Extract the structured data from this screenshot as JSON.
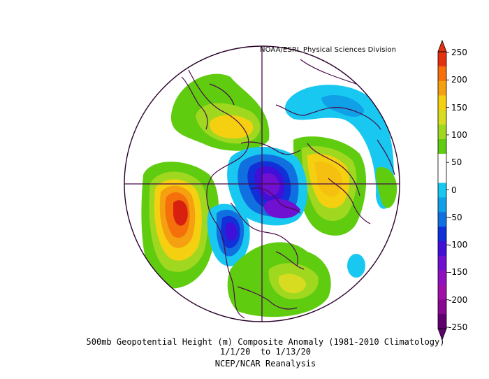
{
  "credit": "NOAA/ESRL Physical Sciences Division",
  "caption": {
    "line1": "500mb Geopotential Height (m) Composite Anomaly (1981-2010 Climatology)",
    "line2": "1/1/20  to 1/13/20",
    "line3": "NCEP/NCAR Reanalysis"
  },
  "colorbar": {
    "labels": [
      "250",
      "200",
      "150",
      "100",
      "50",
      "0",
      "-50",
      "-100",
      "-150",
      "-200",
      "-250"
    ],
    "colors": [
      "#e53010",
      "#f5700a",
      "#f5a010",
      "#f5d010",
      "#d8dc20",
      "#a0d820",
      "#60cc10",
      "#ffffff",
      "#ffffff",
      "#18c8f0",
      "#10a0e8",
      "#1070e0",
      "#1030d8",
      "#4010d8",
      "#7010d0",
      "#9010c0",
      "#a010a8",
      "#880890",
      "#600070"
    ],
    "units": "m"
  },
  "map": {
    "projection": "north polar stereographic",
    "features": [
      {
        "name": "anomaly-positive-north-pacific",
        "value": 250,
        "color": "#d82010"
      },
      {
        "name": "anomaly-positive-europe",
        "value": 150,
        "color": "#f5c010"
      },
      {
        "name": "anomaly-positive-russia",
        "value": 150,
        "color": "#f5d010"
      },
      {
        "name": "anomaly-positive-atlantic",
        "value": 100,
        "color": "#d8dc20"
      },
      {
        "name": "anomaly-negative-western-us",
        "value": -150,
        "color": "#4010d8"
      },
      {
        "name": "anomaly-negative-greenland",
        "value": -200,
        "color": "#7010d0"
      },
      {
        "name": "anomaly-negative-eurasia-arctic",
        "value": -50,
        "color": "#18c8f0"
      }
    ]
  }
}
